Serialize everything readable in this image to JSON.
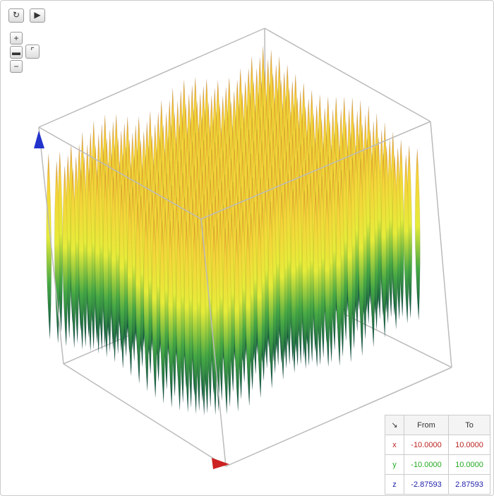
{
  "range_table": {
    "header": [
      "From",
      "To"
    ],
    "rows": [
      {
        "axis": "x",
        "from": "-10.0000",
        "to": "10.0000"
      },
      {
        "axis": "y",
        "from": "-10.0000",
        "to": "10.0000"
      },
      {
        "axis": "z",
        "from": "-2.87593",
        "to": "2.87593"
      }
    ]
  }
}
